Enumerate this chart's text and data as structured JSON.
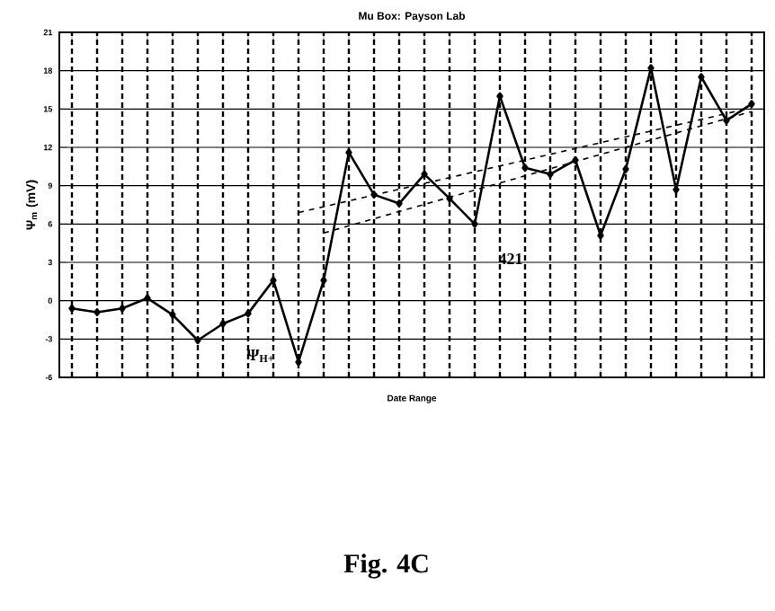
{
  "chart_data": {
    "type": "line",
    "title": "Mu Box: Payson Lab",
    "xlabel": "Date Range",
    "ylabel": "Ψ$_{m}$ (mV)",
    "categories": [
      null,
      null,
      null,
      null,
      null,
      null,
      null,
      null,
      null,
      null,
      null,
      null,
      null,
      null,
      null,
      null,
      null,
      null,
      null,
      null,
      null,
      null,
      null,
      null,
      null,
      null,
      null,
      null
    ],
    "series": [
      {
        "color": "#000000",
        "marker": "diamond",
        "line_style": "solid",
        "values": [
          -0.6,
          -0.9,
          -0.6,
          0.2,
          -1.1,
          -3.1,
          -1.8,
          -1.0,
          1.6,
          -4.8,
          1.6,
          11.6,
          8.3,
          7.6,
          9.9,
          8.0,
          6.0,
          16.0,
          10.4,
          9.9,
          11.0,
          5.1,
          10.3,
          18.2,
          8.7,
          17.5,
          14.1,
          15.4
        ]
      },
      {
        "type": "line",
        "color": "#000000",
        "marker": "none",
        "line_style": "dashed",
        "values": [
          null,
          null,
          null,
          null,
          null,
          null,
          null,
          null,
          null,
          6.9,
          null,
          null,
          null,
          null,
          null,
          null,
          null,
          null,
          null,
          null,
          null,
          null,
          null,
          null,
          null,
          null,
          null,
          15.1
        ]
      },
      {
        "type": "line",
        "color": "#000000",
        "marker": "none",
        "line_style": "dashed",
        "values": [
          null,
          null,
          null,
          null,
          null,
          null,
          null,
          null,
          null,
          null,
          5.3,
          null,
          null,
          null,
          null,
          null,
          null,
          null,
          null,
          null,
          null,
          null,
          null,
          null,
          null,
          null,
          null,
          14.8
        ]
      }
    ],
    "ylim": [
      -6,
      21
    ],
    "yticks": [
      -6,
      -3,
      0,
      3,
      6,
      9,
      12,
      15,
      18,
      21
    ],
    "grid": true,
    "annotations": [
      "421",
      "Ψ$_{H+}$",
      "Fig. 4C"
    ]
  }
}
